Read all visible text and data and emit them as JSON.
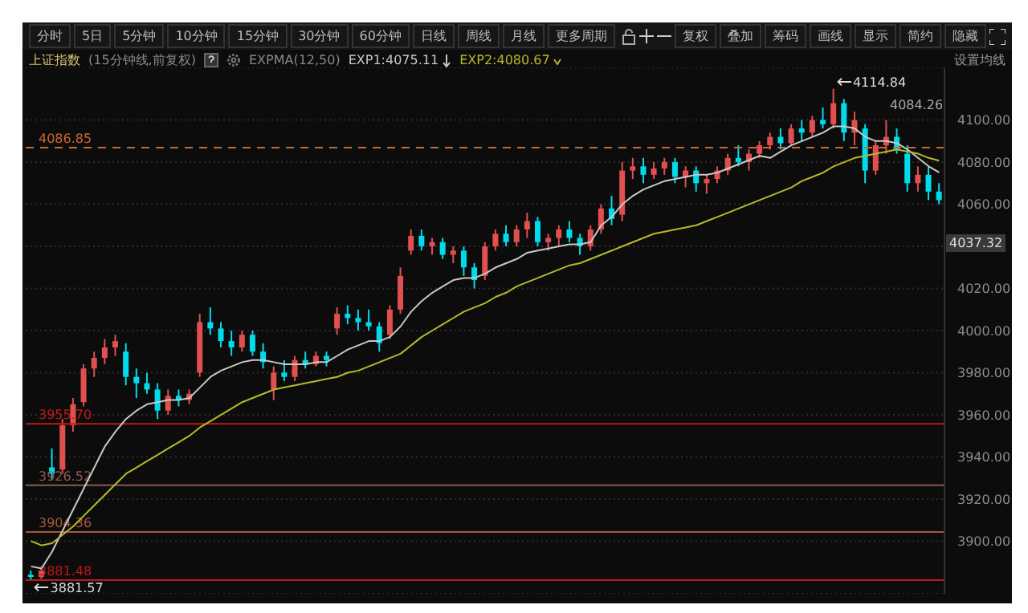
{
  "chart_data": {
    "type": "candlestick",
    "title": "上证指数",
    "subtitle": "(15分钟线,前复权)",
    "legend_title": "EXPMA(12,50)",
    "legend": "top left",
    "grid": "y",
    "tick_labels": "y",
    "marker": "none",
    "annotations": [
      "分时",
      "5日",
      "5分钟",
      "10分钟",
      "15分钟",
      "30分钟",
      "60分钟",
      "日线",
      "周线",
      "月线",
      "更多周期",
      "复权",
      "叠加",
      "筹码",
      "画线",
      "显示",
      "简约",
      "隐藏",
      "设置均线",
      "4114.84",
      "3881.57",
      "4084.26",
      "4037.32"
    ],
    "ylim": [
      3875,
      4125
    ],
    "yticks": [
      {
        "value": 3900,
        "label": "3900.00"
      },
      {
        "value": 3920,
        "label": "3920.00"
      },
      {
        "value": 3940,
        "label": "3940.00"
      },
      {
        "value": 3960,
        "label": "3960.00"
      },
      {
        "value": 3980,
        "label": "3980.00"
      },
      {
        "value": 4000,
        "label": "4000.00"
      },
      {
        "value": 4020,
        "label": "4020.00"
      },
      {
        "value": 4040,
        "label": null
      },
      {
        "value": 4060,
        "label": "4060.00"
      },
      {
        "value": 4080,
        "label": "4080.00"
      },
      {
        "value": 4100,
        "label": "4100.00"
      }
    ],
    "ref_lines": [
      {
        "axis": "y",
        "value": 4086.85,
        "label": "4086.85",
        "color": "#c8692e",
        "line_style": "dashed"
      },
      {
        "axis": "y",
        "value": 3955.7,
        "label": "3955.70",
        "color": "#c01818",
        "line_style": "solid"
      },
      {
        "axis": "y",
        "value": 3926.52,
        "label": "3926.52",
        "color": "#8c5a4e",
        "line_style": "solid"
      },
      {
        "axis": "y",
        "value": 3904.36,
        "label": "3904.36",
        "color": "#a8583a",
        "line_style": "solid"
      },
      {
        "axis": "y",
        "value": 3881.48,
        "label": "3881.48",
        "color": "#c01818",
        "line_style": "solid"
      }
    ],
    "categories": [
      null,
      null,
      null,
      null,
      null,
      null,
      null,
      null,
      null,
      null,
      null,
      null,
      null,
      null,
      null,
      null,
      null,
      null,
      null,
      null,
      null,
      null,
      null,
      null,
      null,
      null,
      null,
      null,
      null,
      null,
      null,
      null,
      null,
      null,
      null,
      null,
      null,
      null,
      null,
      null,
      null,
      null,
      null,
      null,
      null,
      null,
      null,
      null,
      null,
      null,
      null,
      null,
      null,
      null,
      null,
      null,
      null,
      null,
      null,
      null,
      null,
      null,
      null,
      null,
      null,
      null,
      null,
      null,
      null,
      null,
      null,
      null,
      null,
      null,
      null,
      null,
      null,
      null,
      null,
      null,
      null,
      null,
      null,
      null,
      null,
      null,
      null
    ],
    "ohlc": [
      [
        3884,
        3886,
        3881.57,
        3883
      ],
      [
        3883,
        3887,
        3882,
        3886
      ],
      [
        3935,
        3944,
        3929,
        3932
      ],
      [
        3934,
        3958,
        3932,
        3955
      ],
      [
        3955,
        3968,
        3952,
        3965
      ],
      [
        3966,
        3984,
        3964,
        3982
      ],
      [
        3982,
        3990,
        3978,
        3987
      ],
      [
        3987,
        3996,
        3984,
        3992
      ],
      [
        3992,
        3998,
        3988,
        3995
      ],
      [
        3990,
        3994,
        3974,
        3978
      ],
      [
        3978,
        3982,
        3968,
        3975
      ],
      [
        3975,
        3980,
        3970,
        3972
      ],
      [
        3972,
        3975,
        3958,
        3962
      ],
      [
        3962,
        3972,
        3960,
        3969
      ],
      [
        3969,
        3972,
        3964,
        3967
      ],
      [
        3967,
        3972,
        3965,
        3970
      ],
      [
        3980,
        4008,
        3978,
        4004
      ],
      [
        4004,
        4011,
        3998,
        4001
      ],
      [
        4001,
        4004,
        3992,
        3995
      ],
      [
        3995,
        4000,
        3988,
        3992
      ],
      [
        3992,
        4000,
        3990,
        3998
      ],
      [
        3998,
        4000,
        3988,
        3990
      ],
      [
        3990,
        3994,
        3982,
        3985
      ],
      [
        3972,
        3983,
        3967,
        3980
      ],
      [
        3980,
        3986,
        3976,
        3978
      ],
      [
        3978,
        3988,
        3976,
        3986
      ],
      [
        3986,
        3990,
        3982,
        3984
      ],
      [
        3984,
        3990,
        3983,
        3988
      ],
      [
        3988,
        3990,
        3983,
        3986
      ],
      [
        4001,
        4011,
        3998,
        4008
      ],
      [
        4008,
        4012,
        4003,
        4006
      ],
      [
        4006,
        4010,
        4000,
        4004
      ],
      [
        4004,
        4010,
        4000,
        4002
      ],
      [
        4002,
        4004,
        3990,
        3994
      ],
      [
        3998,
        4012,
        3996,
        4010
      ],
      [
        4010,
        4030,
        4008,
        4026
      ],
      [
        4038,
        4048,
        4036,
        4045
      ],
      [
        4045,
        4048,
        4038,
        4040
      ],
      [
        4040,
        4044,
        4036,
        4042
      ],
      [
        4042,
        4044,
        4034,
        4036
      ],
      [
        4036,
        4040,
        4032,
        4038
      ],
      [
        4038,
        4040,
        4026,
        4030
      ],
      [
        4030,
        4032,
        4020,
        4024
      ],
      [
        4026,
        4042,
        4024,
        4040
      ],
      [
        4040,
        4048,
        4038,
        4046
      ],
      [
        4046,
        4050,
        4040,
        4042
      ],
      [
        4042,
        4050,
        4040,
        4048
      ],
      [
        4048,
        4056,
        4044,
        4052
      ],
      [
        4052,
        4054,
        4040,
        4042
      ],
      [
        4042,
        4046,
        4038,
        4044
      ],
      [
        4044,
        4050,
        4040,
        4048
      ],
      [
        4048,
        4052,
        4042,
        4044
      ],
      [
        4044,
        4046,
        4036,
        4040
      ],
      [
        4040,
        4050,
        4038,
        4048
      ],
      [
        4048,
        4060,
        4046,
        4058
      ],
      [
        4058,
        4064,
        4050,
        4053
      ],
      [
        4055,
        4080,
        4052,
        4076
      ],
      [
        4076,
        4082,
        4072,
        4078
      ],
      [
        4078,
        4082,
        4070,
        4074
      ],
      [
        4074,
        4080,
        4072,
        4077
      ],
      [
        4077,
        4082,
        4074,
        4080
      ],
      [
        4080,
        4082,
        4070,
        4073
      ],
      [
        4073,
        4078,
        4068,
        4076
      ],
      [
        4076,
        4078,
        4066,
        4070
      ],
      [
        4070,
        4074,
        4065,
        4072
      ],
      [
        4072,
        4078,
        4070,
        4076
      ],
      [
        4076,
        4084,
        4074,
        4082
      ],
      [
        4082,
        4088,
        4078,
        4080
      ],
      [
        4080,
        4086,
        4076,
        4084
      ],
      [
        4084,
        4090,
        4082,
        4088
      ],
      [
        4088,
        4094,
        4086,
        4092
      ],
      [
        4092,
        4096,
        4086,
        4089
      ],
      [
        4089,
        4098,
        4088,
        4096
      ],
      [
        4096,
        4100,
        4090,
        4094
      ],
      [
        4094,
        4102,
        4092,
        4100
      ],
      [
        4100,
        4106,
        4096,
        4098
      ],
      [
        4098,
        4114.84,
        4096,
        4108
      ],
      [
        4108,
        4110,
        4090,
        4094
      ],
      [
        4094,
        4104,
        4088,
        4100
      ],
      [
        4096,
        4098,
        4070,
        4076
      ],
      [
        4076,
        4090,
        4074,
        4088
      ],
      [
        4088,
        4100,
        4084,
        4092
      ],
      [
        4092,
        4096,
        4084,
        4086
      ],
      [
        4084,
        4088,
        4066,
        4070
      ],
      [
        4070,
        4078,
        4066,
        4074
      ],
      [
        4074,
        4078,
        4062,
        4066
      ],
      [
        4066,
        4070,
        4060,
        4062
      ]
    ],
    "colors": [
      "#00dcec",
      "#e0504f",
      "#00dcec",
      "#e0504f",
      "#e0504f",
      "#e0504f",
      "#e0504f",
      "#e0504f",
      "#e0504f",
      "#00dcec",
      "#00dcec",
      "#00dcec",
      "#00dcec",
      "#e0504f",
      "#00dcec",
      "#e0504f",
      "#e0504f",
      "#00dcec",
      "#00dcec",
      "#00dcec",
      "#e0504f",
      "#00dcec",
      "#00dcec",
      "#e0504f",
      "#00dcec",
      "#e0504f",
      "#00dcec",
      "#e0504f",
      "#00dcec",
      "#e0504f",
      "#00dcec",
      "#00dcec",
      "#00dcec",
      "#00dcec",
      "#e0504f",
      "#e0504f",
      "#e0504f",
      "#00dcec",
      "#e0504f",
      "#00dcec",
      "#e0504f",
      "#00dcec",
      "#00dcec",
      "#e0504f",
      "#e0504f",
      "#00dcec",
      "#e0504f",
      "#e0504f",
      "#00dcec",
      "#e0504f",
      "#e0504f",
      "#00dcec",
      "#00dcec",
      "#e0504f",
      "#e0504f",
      "#00dcec",
      "#e0504f",
      "#e0504f",
      "#00dcec",
      "#e0504f",
      "#e0504f",
      "#00dcec",
      "#e0504f",
      "#00dcec",
      "#e0504f",
      "#e0504f",
      "#e0504f",
      "#00dcec",
      "#e0504f",
      "#e0504f",
      "#e0504f",
      "#00dcec",
      "#e0504f",
      "#00dcec",
      "#e0504f",
      "#00dcec",
      "#e0504f",
      "#00dcec",
      "#e0504f",
      "#00dcec",
      "#e0504f",
      "#e0504f",
      "#00dcec",
      "#00dcec",
      "#e0504f",
      "#00dcec",
      "#00dcec"
    ],
    "series": [
      {
        "type": "line",
        "name": "EXP1:4075.11",
        "color": "#c8c8c8",
        "line_style": "solid",
        "values": [
          3888,
          3887,
          3895,
          3905,
          3915,
          3925,
          3935,
          3945,
          3952,
          3958,
          3962,
          3965,
          3966,
          3967,
          3967,
          3968,
          3973,
          3978,
          3981,
          3983,
          3985,
          3986,
          3986,
          3985,
          3984,
          3984,
          3984,
          3985,
          3985,
          3988,
          3991,
          3993,
          3995,
          3995,
          3997,
          4002,
          4009,
          4014,
          4018,
          4021,
          4024,
          4025,
          4025,
          4027,
          4030,
          4032,
          4034,
          4037,
          4038,
          4039,
          4040,
          4041,
          4041,
          4042,
          4050,
          4054,
          4060,
          4064,
          4067,
          4069,
          4071,
          4072,
          4073,
          4074,
          4074,
          4075,
          4077,
          4079,
          4081,
          4083,
          4082,
          4085,
          4088,
          4090,
          4092,
          4094,
          4097,
          4097,
          4096,
          4092,
          4090,
          4090,
          4089,
          4086,
          4082,
          4078,
          4075.11
        ]
      },
      {
        "type": "line",
        "name": "EXP2:4080.67",
        "color": "#b8b82a",
        "line_style": "solid",
        "values": [
          3900,
          3898,
          3899,
          3903,
          3907,
          3912,
          3917,
          3922,
          3927,
          3932,
          3935,
          3938,
          3941,
          3944,
          3947,
          3950,
          3954,
          3957,
          3960,
          3963,
          3966,
          3968,
          3970,
          3972,
          3973,
          3974,
          3975,
          3976,
          3977,
          3978,
          3980,
          3981,
          3983,
          3985,
          3987,
          3989,
          3993,
          3997,
          4000,
          4003,
          4006,
          4009,
          4011,
          4013,
          4016,
          4018,
          4021,
          4023,
          4025,
          4027,
          4029,
          4031,
          4032,
          4034,
          4036,
          4038,
          4040,
          4042,
          4044,
          4046,
          4047,
          4048,
          4049,
          4050,
          4052,
          4054,
          4056,
          4058,
          4060,
          4062,
          4064,
          4066,
          4068,
          4071,
          4073,
          4075,
          4078,
          4080,
          4082,
          4083,
          4084,
          4085,
          4086,
          4085,
          4084,
          4082,
          4080.67
        ]
      }
    ]
  }
}
